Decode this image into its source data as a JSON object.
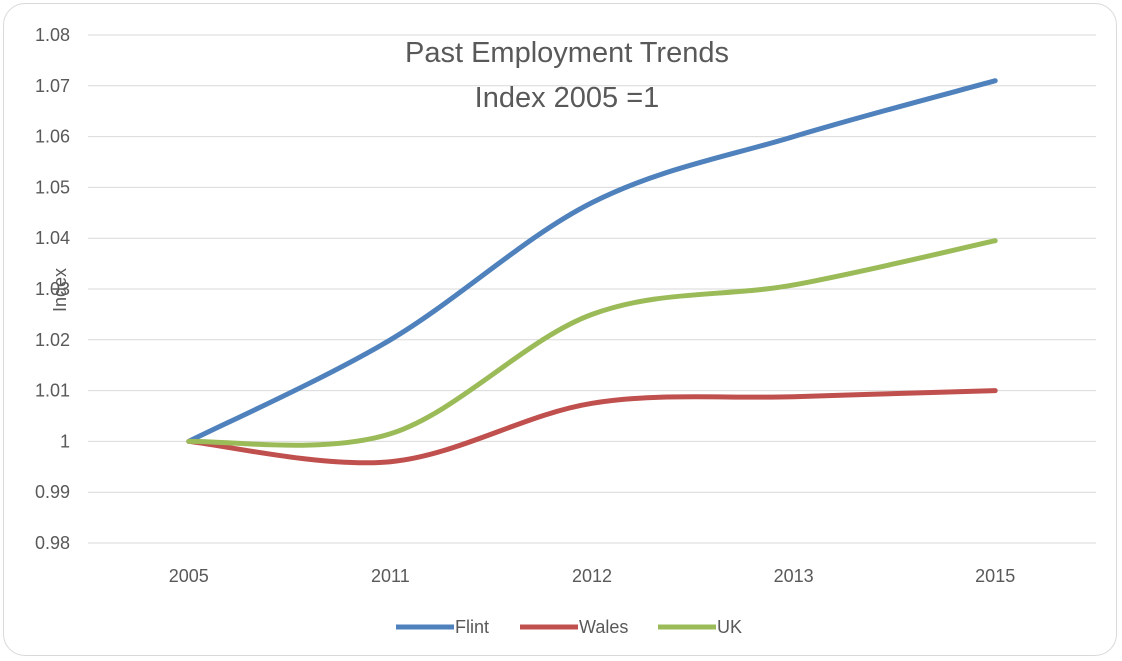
{
  "chart_data": {
    "type": "line",
    "title": "Past Employment Trends",
    "subtitle": "Index 2005 =1",
    "xlabel": "",
    "ylabel": "Index",
    "categories": [
      "2005",
      "2011",
      "2012",
      "2013",
      "2015"
    ],
    "ylim": [
      0.98,
      1.08
    ],
    "yticks": [
      0.98,
      0.99,
      1,
      1.01,
      1.02,
      1.03,
      1.04,
      1.05,
      1.06,
      1.07,
      1.08
    ],
    "ytick_labels": [
      "0.98",
      "0.99",
      "1",
      "1.01",
      "1.02",
      "1.03",
      "1.04",
      "1.05",
      "1.06",
      "1.07",
      "1.08"
    ],
    "grid": true,
    "smooth": true,
    "legend_position": "bottom",
    "series": [
      {
        "name": "Flint",
        "color": "#4f81bd",
        "values": [
          1.0,
          1.02,
          1.047,
          1.06,
          1.071
        ]
      },
      {
        "name": "Wales",
        "color": "#c0504d",
        "values": [
          1.0,
          0.996,
          1.0075,
          1.0088,
          1.01
        ]
      },
      {
        "name": "UK",
        "color": "#9bbb59",
        "values": [
          1.0,
          1.0015,
          1.025,
          1.0308,
          1.0395
        ]
      }
    ]
  }
}
